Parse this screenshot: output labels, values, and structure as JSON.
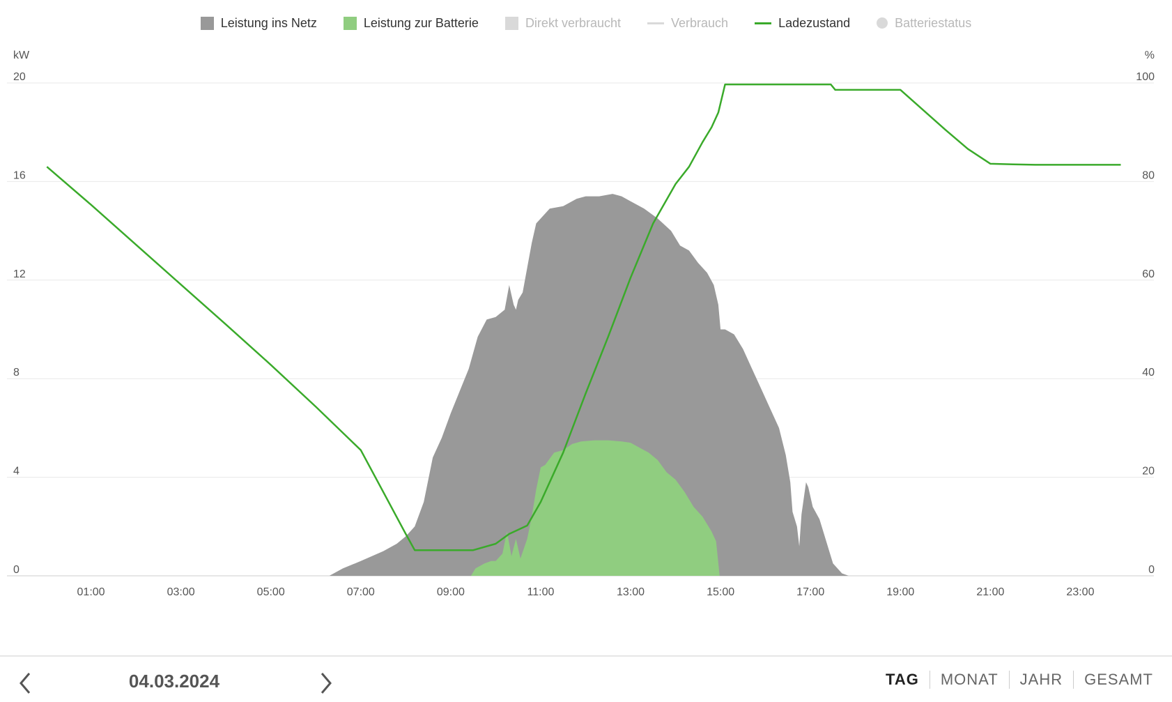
{
  "legend": [
    {
      "label": "Leistung ins Netz",
      "shape": "square",
      "color": "#999999",
      "muted": false
    },
    {
      "label": "Leistung zur Batterie",
      "shape": "square",
      "color": "#90cd80",
      "muted": false
    },
    {
      "label": "Direkt verbraucht",
      "shape": "square",
      "color": "#d9d9d9",
      "muted": true
    },
    {
      "label": "Verbrauch",
      "shape": "line",
      "color": "#d9d9d9",
      "muted": true
    },
    {
      "label": "Ladezustand",
      "shape": "line",
      "color": "#3aaa2a",
      "muted": false
    },
    {
      "label": "Batteriestatus",
      "shape": "dot",
      "color": "#d9d9d9",
      "muted": true
    }
  ],
  "nav": {
    "date": "04.03.2024",
    "prev_icon": "chevron-left-icon",
    "next_icon": "chevron-right-icon"
  },
  "periods": [
    {
      "label": "TAG",
      "active": true
    },
    {
      "label": "MONAT",
      "active": false
    },
    {
      "label": "JAHR",
      "active": false
    },
    {
      "label": "GESAMT",
      "active": false
    }
  ],
  "chart_data": {
    "type": "area",
    "left_unit": "kW",
    "right_unit": "%",
    "left_ylim": [
      0,
      20
    ],
    "left_ticks": [
      "0",
      "4",
      "8",
      "12",
      "16",
      "20"
    ],
    "right_ylim": [
      0,
      100
    ],
    "right_ticks": [
      "0",
      "20",
      "40",
      "60",
      "80",
      "100"
    ],
    "xlim": [
      0,
      24
    ],
    "x_ticks": [
      "01:00",
      "03:00",
      "05:00",
      "07:00",
      "09:00",
      "11:00",
      "13:00",
      "15:00",
      "17:00",
      "19:00",
      "21:00",
      "23:00"
    ],
    "grid": true,
    "series": [
      {
        "name": "Leistung ins Netz",
        "type": "area",
        "axis": "left",
        "color": "#999999",
        "points": [
          [
            6.3,
            0
          ],
          [
            6.6,
            0.3
          ],
          [
            7.0,
            0.6
          ],
          [
            7.5,
            1.0
          ],
          [
            7.8,
            1.3
          ],
          [
            8.0,
            1.6
          ],
          [
            8.2,
            2.0
          ],
          [
            8.4,
            3.0
          ],
          [
            8.6,
            4.8
          ],
          [
            8.8,
            5.6
          ],
          [
            9.0,
            6.6
          ],
          [
            9.2,
            7.5
          ],
          [
            9.4,
            8.4
          ],
          [
            9.6,
            9.7
          ],
          [
            9.8,
            10.4
          ],
          [
            10.0,
            10.5
          ],
          [
            10.2,
            10.8
          ],
          [
            10.3,
            11.8
          ],
          [
            10.4,
            11.0
          ],
          [
            10.45,
            10.8
          ],
          [
            10.5,
            11.2
          ],
          [
            10.6,
            11.5
          ],
          [
            10.7,
            12.5
          ],
          [
            10.8,
            13.5
          ],
          [
            10.9,
            14.3
          ],
          [
            11.0,
            14.5
          ],
          [
            11.2,
            14.9
          ],
          [
            11.5,
            15.0
          ],
          [
            11.8,
            15.3
          ],
          [
            12.0,
            15.4
          ],
          [
            12.3,
            15.4
          ],
          [
            12.6,
            15.5
          ],
          [
            12.8,
            15.4
          ],
          [
            13.0,
            15.2
          ],
          [
            13.3,
            14.9
          ],
          [
            13.6,
            14.5
          ],
          [
            13.9,
            14.0
          ],
          [
            14.1,
            13.4
          ],
          [
            14.3,
            13.2
          ],
          [
            14.5,
            12.7
          ],
          [
            14.7,
            12.3
          ],
          [
            14.85,
            11.8
          ],
          [
            14.95,
            11.0
          ],
          [
            15.0,
            10.0
          ],
          [
            15.1,
            10.0
          ],
          [
            15.3,
            9.8
          ],
          [
            15.5,
            9.2
          ],
          [
            15.7,
            8.4
          ],
          [
            15.9,
            7.6
          ],
          [
            16.1,
            6.8
          ],
          [
            16.3,
            6.0
          ],
          [
            16.45,
            4.9
          ],
          [
            16.55,
            3.8
          ],
          [
            16.6,
            2.6
          ],
          [
            16.7,
            2.0
          ],
          [
            16.75,
            1.2
          ],
          [
            16.8,
            2.5
          ],
          [
            16.9,
            3.8
          ],
          [
            16.95,
            3.6
          ],
          [
            17.05,
            2.8
          ],
          [
            17.2,
            2.3
          ],
          [
            17.35,
            1.4
          ],
          [
            17.5,
            0.5
          ],
          [
            17.7,
            0.1
          ],
          [
            17.85,
            0
          ]
        ]
      },
      {
        "name": "Leistung zur Batterie",
        "type": "area",
        "axis": "left",
        "color": "#90cd80",
        "points": [
          [
            9.45,
            0
          ],
          [
            9.55,
            0.3
          ],
          [
            9.75,
            0.5
          ],
          [
            9.9,
            0.6
          ],
          [
            10.0,
            0.6
          ],
          [
            10.15,
            0.9
          ],
          [
            10.25,
            1.8
          ],
          [
            10.35,
            0.8
          ],
          [
            10.45,
            1.5
          ],
          [
            10.55,
            0.7
          ],
          [
            10.7,
            1.5
          ],
          [
            10.8,
            2.4
          ],
          [
            10.9,
            3.5
          ],
          [
            11.0,
            4.4
          ],
          [
            11.1,
            4.5
          ],
          [
            11.3,
            5.0
          ],
          [
            11.5,
            5.1
          ],
          [
            11.7,
            5.35
          ],
          [
            11.9,
            5.45
          ],
          [
            12.2,
            5.5
          ],
          [
            12.5,
            5.5
          ],
          [
            12.8,
            5.45
          ],
          [
            13.0,
            5.4
          ],
          [
            13.2,
            5.2
          ],
          [
            13.4,
            5.0
          ],
          [
            13.6,
            4.7
          ],
          [
            13.8,
            4.2
          ],
          [
            14.0,
            3.9
          ],
          [
            14.2,
            3.4
          ],
          [
            14.4,
            2.8
          ],
          [
            14.6,
            2.4
          ],
          [
            14.8,
            1.8
          ],
          [
            14.9,
            1.4
          ],
          [
            14.98,
            0
          ]
        ]
      },
      {
        "name": "Ladezustand",
        "type": "line",
        "axis": "right",
        "color": "#3aaa2a",
        "points": [
          [
            0.02,
            83
          ],
          [
            1,
            75.3
          ],
          [
            2,
            67.2
          ],
          [
            3,
            59.1
          ],
          [
            4,
            51
          ],
          [
            5,
            42.8
          ],
          [
            6,
            34.3
          ],
          [
            7,
            25.5
          ],
          [
            7.5,
            17
          ],
          [
            8.0,
            8.5
          ],
          [
            8.2,
            5.2
          ],
          [
            9.0,
            5.2
          ],
          [
            9.5,
            5.2
          ],
          [
            10.0,
            6.5
          ],
          [
            10.3,
            8.5
          ],
          [
            10.7,
            10.2
          ],
          [
            11.0,
            15
          ],
          [
            11.5,
            25
          ],
          [
            12.0,
            37
          ],
          [
            12.5,
            48.5
          ],
          [
            13.0,
            60.5
          ],
          [
            13.5,
            71.5
          ],
          [
            14.0,
            79.5
          ],
          [
            14.3,
            83
          ],
          [
            14.6,
            88
          ],
          [
            14.8,
            91
          ],
          [
            14.95,
            94
          ],
          [
            15.1,
            99.7
          ],
          [
            16.0,
            99.7
          ],
          [
            17.0,
            99.7
          ],
          [
            17.45,
            99.7
          ],
          [
            17.55,
            98.6
          ],
          [
            18.0,
            98.6
          ],
          [
            19.0,
            98.6
          ],
          [
            20.0,
            90.5
          ],
          [
            20.5,
            86.6
          ],
          [
            21.0,
            83.6
          ],
          [
            21.5,
            83.5
          ],
          [
            22.0,
            83.4
          ],
          [
            23.0,
            83.4
          ],
          [
            23.9,
            83.4
          ]
        ]
      }
    ]
  }
}
